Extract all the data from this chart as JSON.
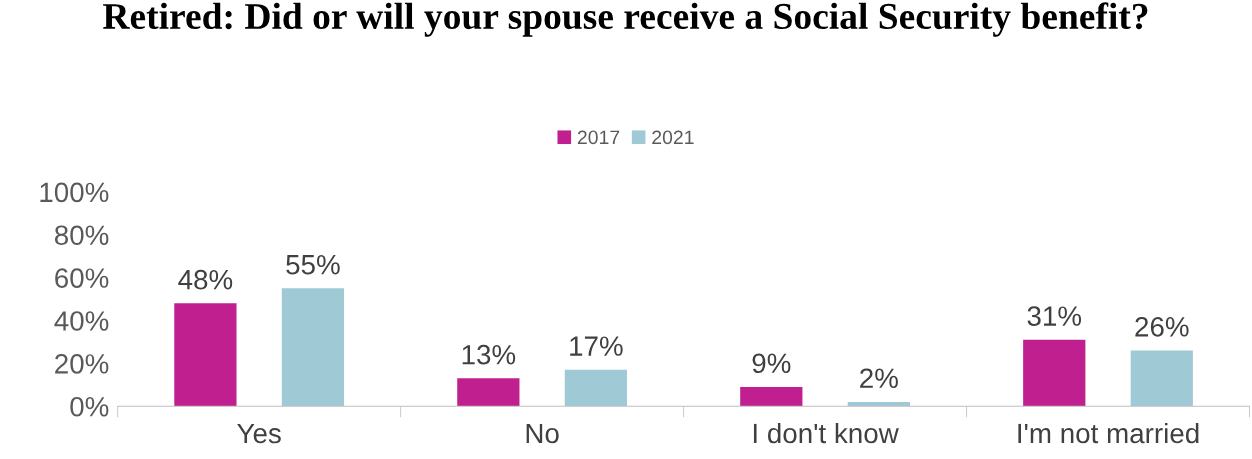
{
  "chart_data": {
    "type": "bar",
    "title": "Retired: Did or will your spouse receive a Social Security benefit?",
    "categories": [
      "Yes",
      "No",
      "I don't know",
      "I'm not married"
    ],
    "series": [
      {
        "name": "2017",
        "color": "#c0208f",
        "values": [
          48,
          13,
          9,
          31
        ],
        "value_labels": [
          "48%",
          "13%",
          "9%",
          "31%"
        ]
      },
      {
        "name": "2021",
        "color": "#9fc9d4",
        "values": [
          55,
          17,
          2,
          26
        ],
        "value_labels": [
          "55%",
          "17%",
          "2%",
          "26%"
        ]
      }
    ],
    "ylim": [
      0,
      100
    ],
    "yticks": [
      {
        "value": 0,
        "label": "0%"
      },
      {
        "value": 20,
        "label": "20%"
      },
      {
        "value": 40,
        "label": "40%"
      },
      {
        "value": 60,
        "label": "60%"
      },
      {
        "value": 80,
        "label": "80%"
      },
      {
        "value": 100,
        "label": "100%"
      }
    ],
    "grid": false,
    "legend": "top"
  }
}
